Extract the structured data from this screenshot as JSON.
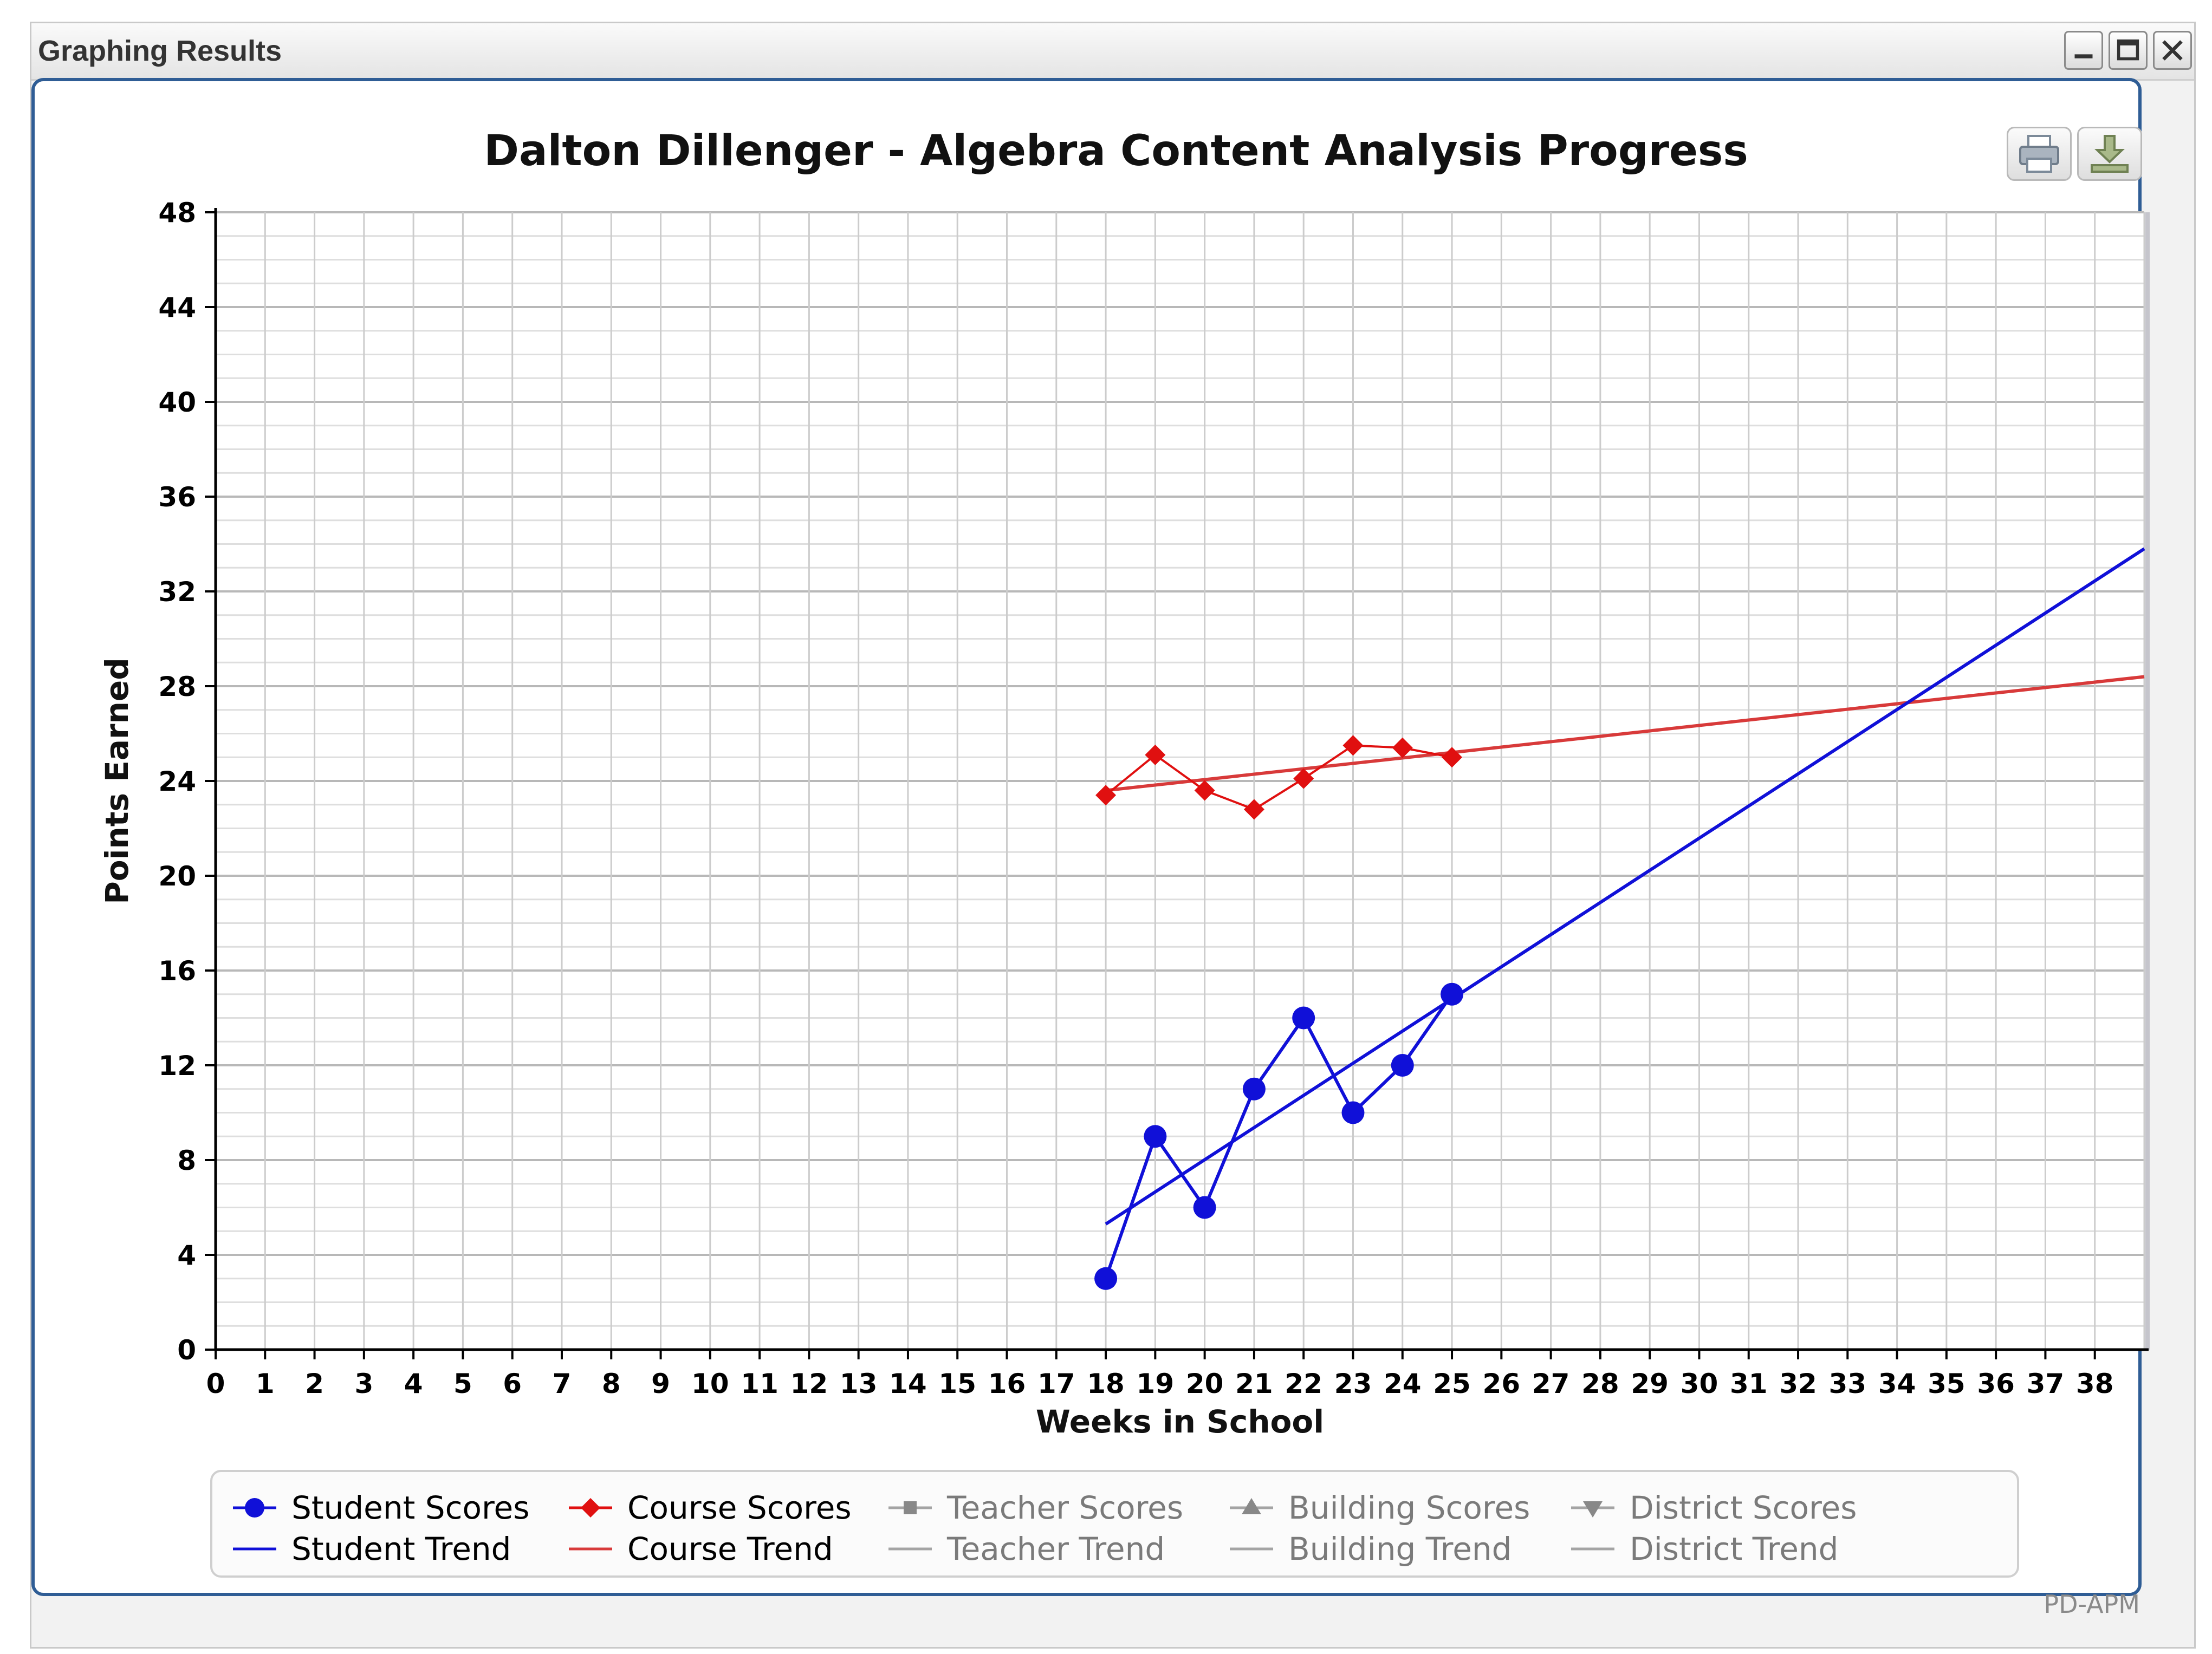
{
  "window": {
    "title": "Graphing Results",
    "controls": [
      "minimize",
      "maximize",
      "close"
    ]
  },
  "toolbar": {
    "icons": [
      "print-icon",
      "download-icon"
    ]
  },
  "watermark": "PD-APM",
  "colors": {
    "student": "#1010d8",
    "course": "#e01010",
    "course_trend": "#d83a3a",
    "muted": "#888888",
    "panel_border": "#2f5d95"
  },
  "chart_data": {
    "type": "line",
    "title": "Dalton Dillenger - Algebra Content Analysis Progress",
    "xlabel": "Weeks in School",
    "ylabel": "Points Earned",
    "xlim": [
      0,
      39
    ],
    "ylim": [
      0,
      48
    ],
    "xticks": [
      "0",
      "1",
      "2",
      "3",
      "4",
      "5",
      "6",
      "7",
      "8",
      "9",
      "10",
      "11",
      "12",
      "13",
      "14",
      "15",
      "16",
      "17",
      "18",
      "19",
      "20",
      "21",
      "22",
      "23",
      "24",
      "25",
      "26",
      "27",
      "28",
      "29",
      "30",
      "31",
      "32",
      "33",
      "34",
      "35",
      "36",
      "37",
      "38"
    ],
    "yticks": [
      "0",
      "4",
      "8",
      "12",
      "16",
      "20",
      "24",
      "28",
      "32",
      "36",
      "40",
      "44",
      "48"
    ],
    "grid": true,
    "legend_position": "bottom",
    "series": [
      {
        "name": "Student Scores",
        "kind": "points",
        "marker": "circle",
        "x": [
          18,
          19,
          20,
          21,
          22,
          23,
          24,
          25
        ],
        "y": [
          3,
          9,
          6,
          11,
          14,
          10,
          12,
          15
        ]
      },
      {
        "name": "Student Trend",
        "kind": "trend",
        "x": [
          18,
          39
        ],
        "y": [
          5.3,
          33.8
        ]
      },
      {
        "name": "Course Scores",
        "kind": "points",
        "marker": "diamond",
        "x": [
          18,
          19,
          20,
          21,
          22,
          23,
          24,
          25
        ],
        "y": [
          23.4,
          25.1,
          23.6,
          22.8,
          24.1,
          25.5,
          25.4,
          25.0
        ]
      },
      {
        "name": "Course Trend",
        "kind": "trend",
        "x": [
          18,
          39
        ],
        "y": [
          23.6,
          28.4
        ]
      }
    ],
    "legend": [
      {
        "name": "Student Scores",
        "style": "circle",
        "color": "#1010d8",
        "active": true
      },
      {
        "name": "Course Scores",
        "style": "diamond",
        "color": "#e01010",
        "active": true
      },
      {
        "name": "Teacher Scores",
        "style": "square",
        "color": "#888888",
        "active": false
      },
      {
        "name": "Building Scores",
        "style": "triangle-up",
        "color": "#888888",
        "active": false
      },
      {
        "name": "District Scores",
        "style": "triangle-down",
        "color": "#888888",
        "active": false
      },
      {
        "name": "Student Trend",
        "style": "line",
        "color": "#1010d8",
        "active": true
      },
      {
        "name": "Course Trend",
        "style": "line",
        "color": "#d83a3a",
        "active": true
      },
      {
        "name": "Teacher Trend",
        "style": "line",
        "color": "#888888",
        "active": false
      },
      {
        "name": "Building Trend",
        "style": "line",
        "color": "#888888",
        "active": false
      },
      {
        "name": "District Trend",
        "style": "line",
        "color": "#888888",
        "active": false
      }
    ]
  }
}
